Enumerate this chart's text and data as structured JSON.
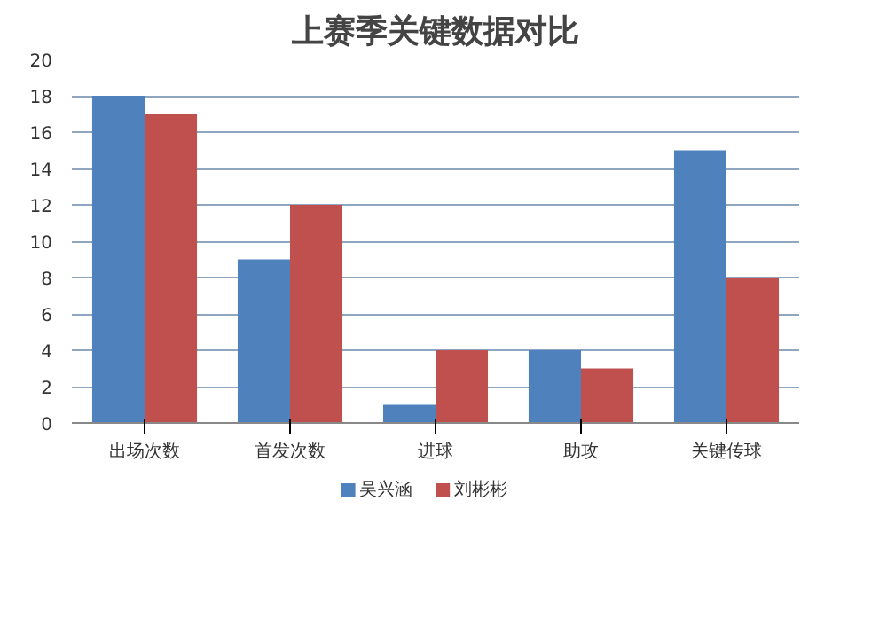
{
  "chart_data": {
    "type": "bar",
    "title": "上赛季关键数据对比",
    "categories": [
      "出场次数",
      "首发次数",
      "进球",
      "助攻",
      "关键传球"
    ],
    "series": [
      {
        "name": "吴兴涵",
        "color": "#4f81bd",
        "values": [
          18,
          9,
          1,
          4,
          15
        ]
      },
      {
        "name": "刘彬彬",
        "color": "#c0504d",
        "values": [
          17,
          12,
          4,
          3,
          8
        ]
      }
    ],
    "ylim": [
      0,
      20
    ],
    "yticks": [
      0,
      2,
      4,
      6,
      8,
      10,
      12,
      14,
      16,
      18,
      20
    ],
    "grid": "y",
    "legend": "bottom"
  }
}
